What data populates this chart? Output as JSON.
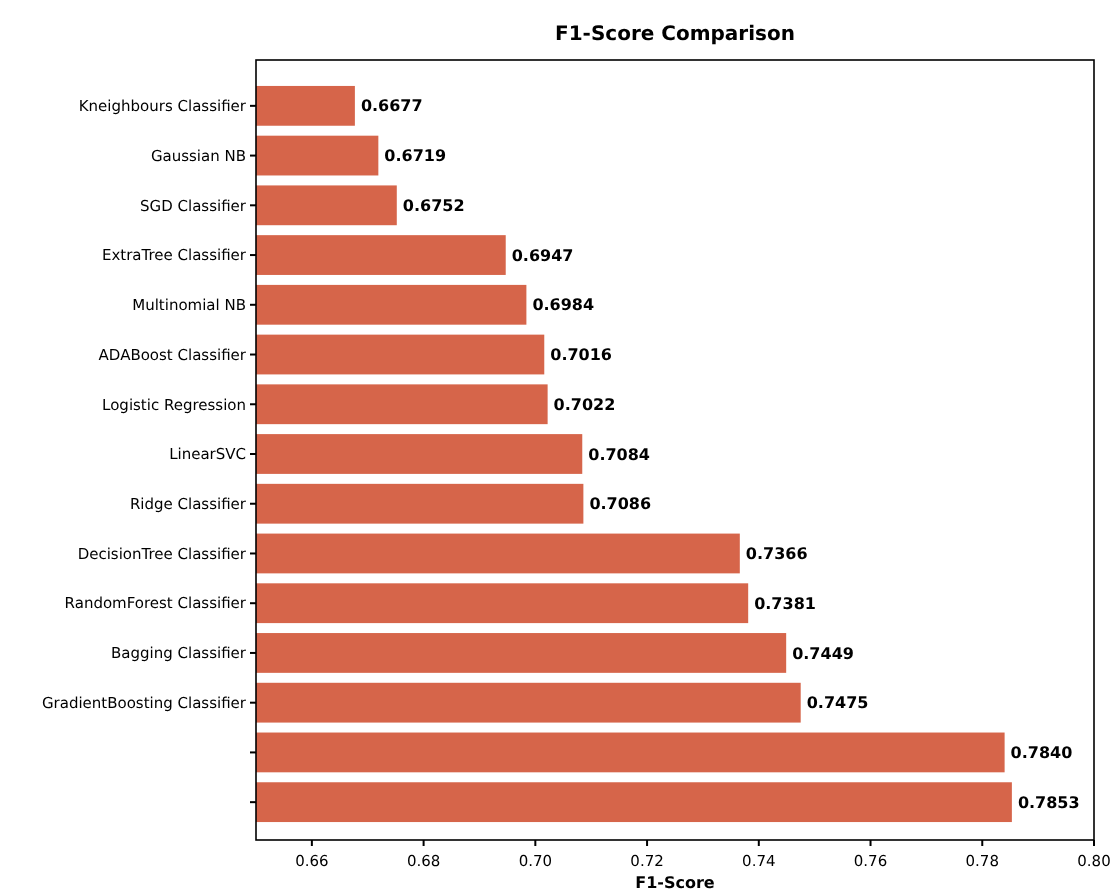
{
  "chart_data": {
    "type": "bar",
    "orientation": "horizontal",
    "title": "F1-Score Comparison",
    "xlabel": "F1-Score",
    "categories": [
      "Kneighbours Classifier",
      "Gaussian NB",
      "SGD Classifier",
      "ExtraTree Classifier",
      "Multinomial NB",
      "ADABoost Classifier",
      "Logistic Regression",
      "LinearSVC",
      "Ridge Classifier",
      "DecisionTree Classifier",
      "RandomForest Classifier",
      "Bagging Classifier",
      "GradientBoosting Classifier",
      null,
      null
    ],
    "values": [
      0.6677,
      0.6719,
      0.6752,
      0.6947,
      0.6984,
      0.7016,
      0.7022,
      0.7084,
      0.7086,
      0.7366,
      0.7381,
      0.7449,
      0.7475,
      0.784,
      0.7853
    ],
    "color": "#d6654a",
    "data_labels": true,
    "value_labels": [
      "0.6677",
      "0.6719",
      "0.6752",
      "0.6947",
      "0.6984",
      "0.7016",
      "0.7022",
      "0.7084",
      "0.7086",
      "0.7366",
      "0.7381",
      "0.7449",
      "0.7475",
      "0.7840",
      "0.7853"
    ],
    "xlim": [
      0.65,
      0.8
    ],
    "xticks": [
      {
        "value": 0.66,
        "label": "0.66"
      },
      {
        "value": 0.68,
        "label": "0.68"
      },
      {
        "value": 0.7,
        "label": "0.70"
      },
      {
        "value": 0.72,
        "label": "0.72"
      },
      {
        "value": 0.74,
        "label": "0.74"
      },
      {
        "value": 0.76,
        "label": "0.76"
      },
      {
        "value": 0.78,
        "label": "0.78"
      },
      {
        "value": 0.8,
        "label": "0.80"
      }
    ],
    "grid": false
  }
}
